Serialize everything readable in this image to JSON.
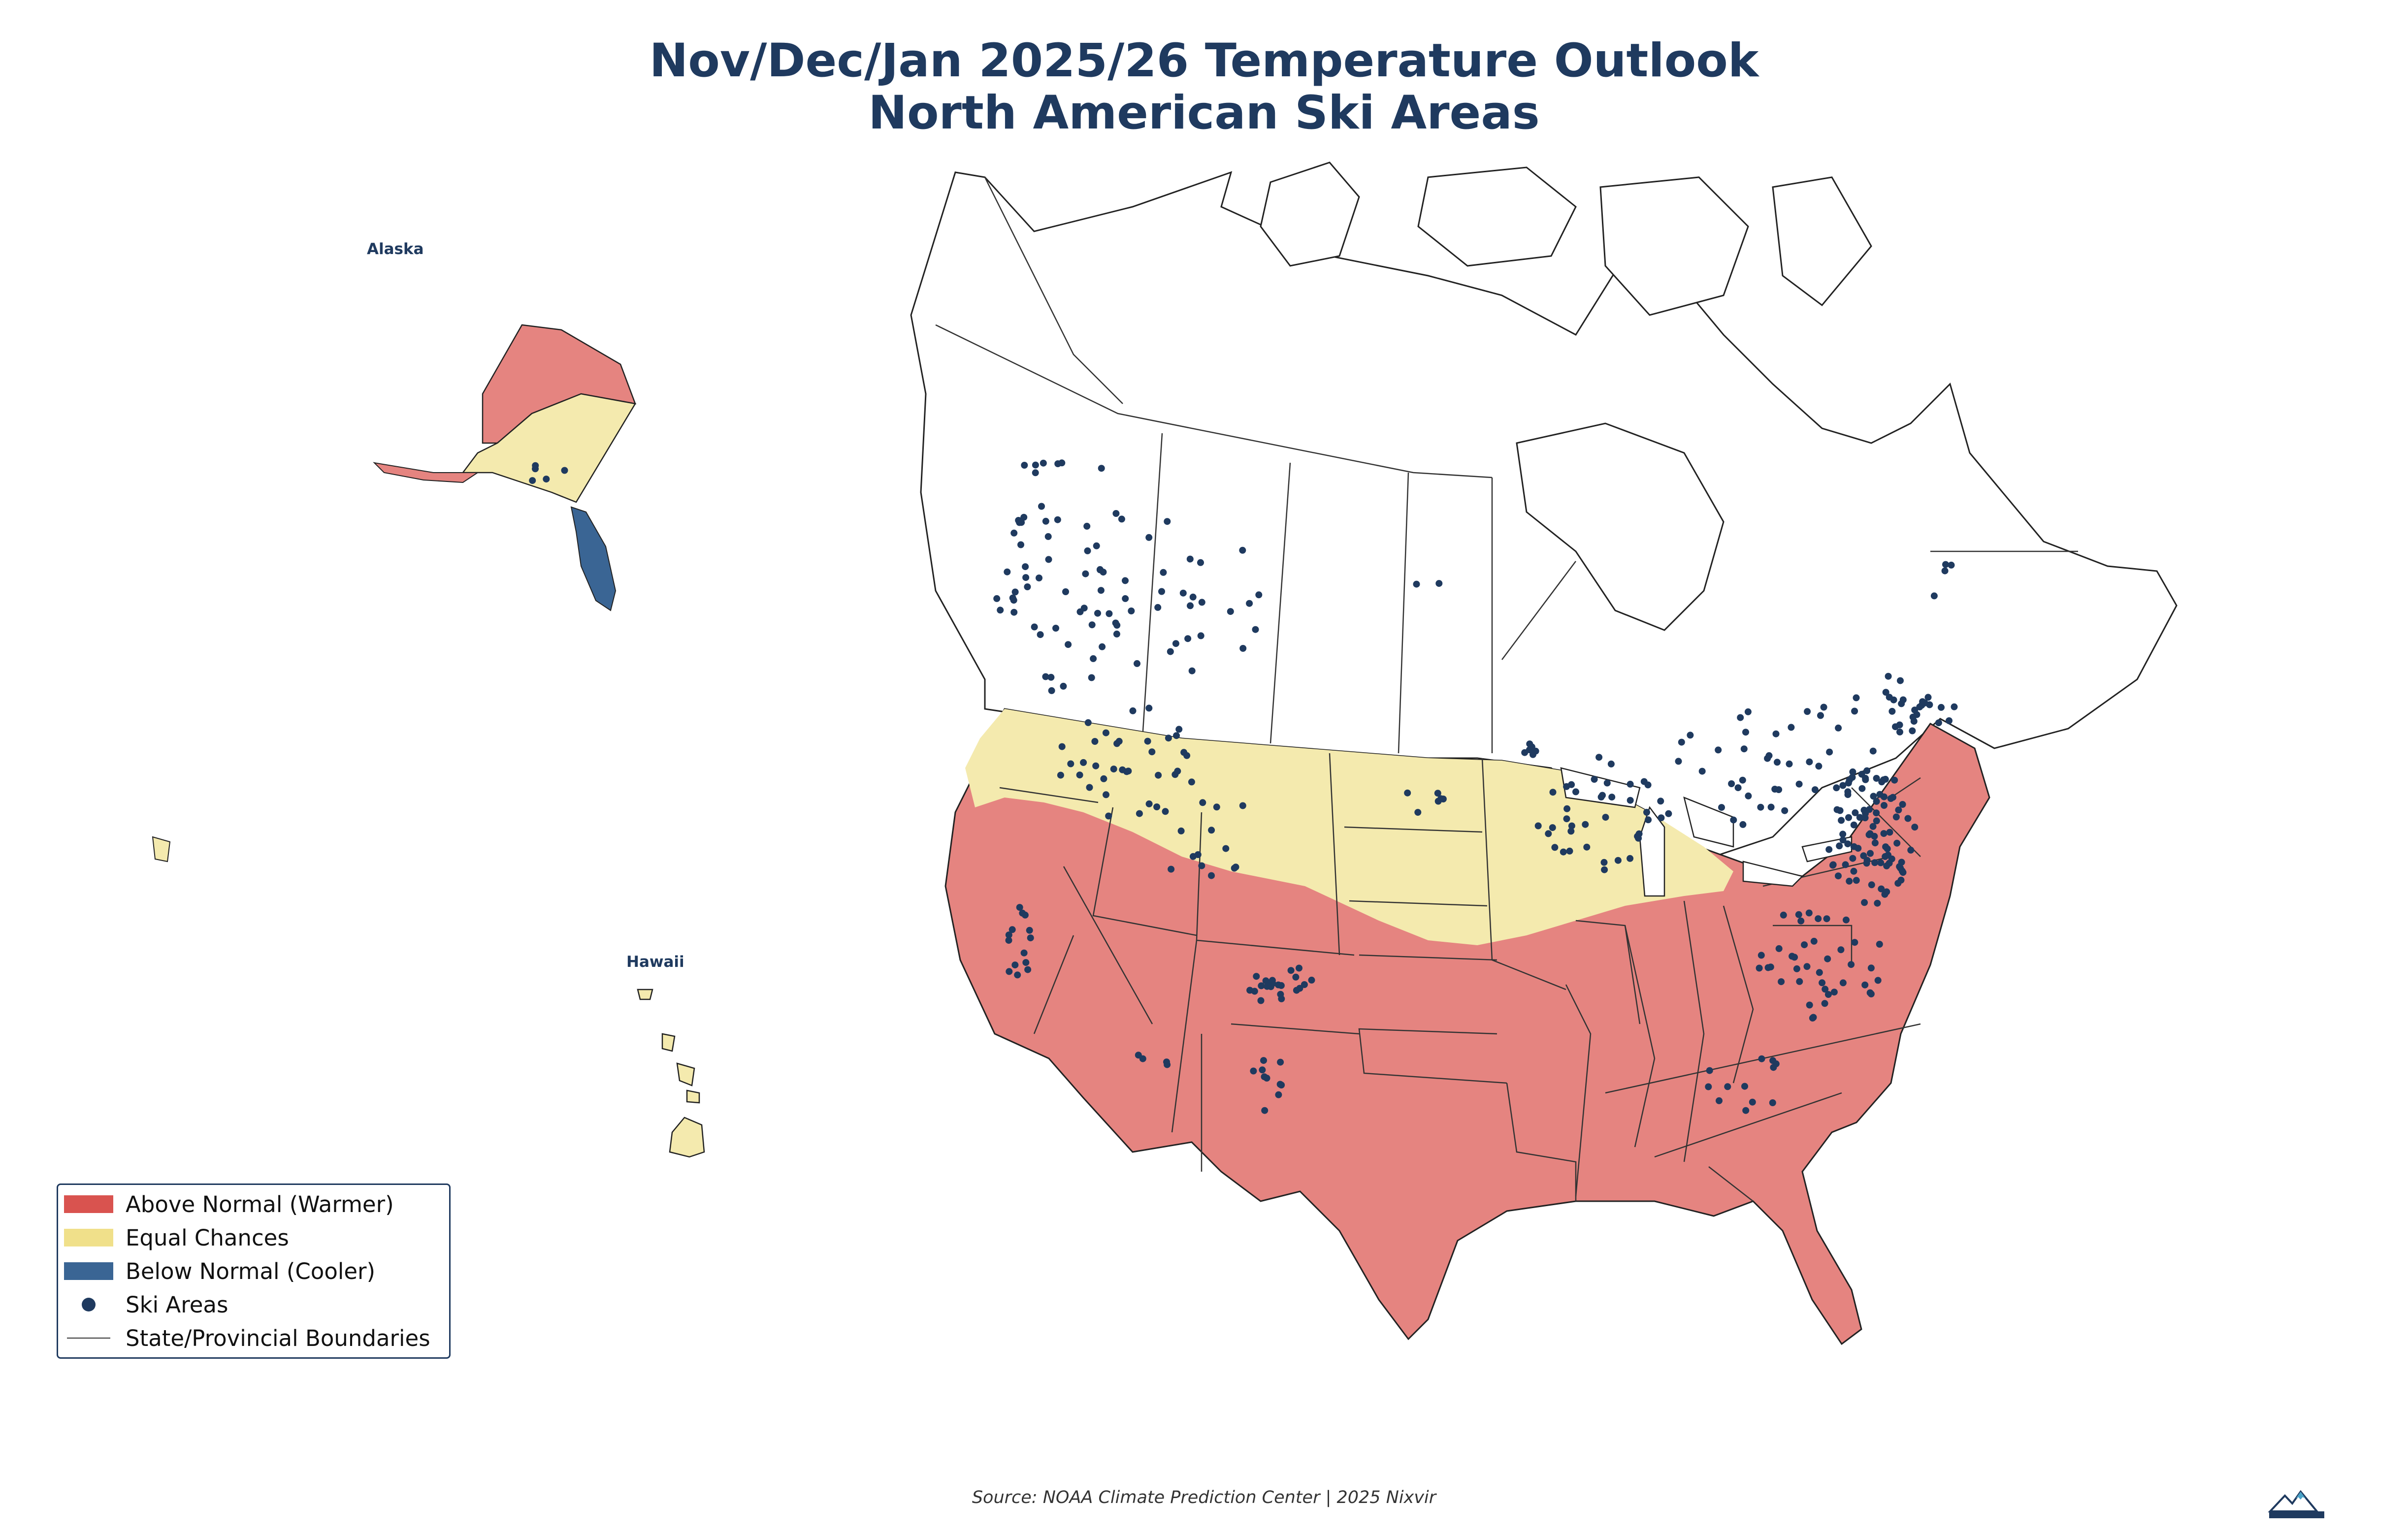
{
  "header": {
    "title_line1": "Nov/Dec/Jan 2025/26 Temperature Outlook",
    "title_line2": "North American Ski Areas"
  },
  "insets": {
    "alaska_label": "Alaska",
    "hawaii_label": "Hawaii"
  },
  "legend": {
    "items": [
      {
        "label": "Above Normal (Warmer)",
        "color": "#d9534f"
      },
      {
        "label": "Equal Chances",
        "color": "#f0e08a"
      },
      {
        "label": "Below Normal (Cooler)",
        "color": "#3a6594"
      },
      {
        "label": "Ski Areas",
        "color": "#1f3a5f"
      },
      {
        "label": "State/Provincial Boundaries",
        "color": "#333333"
      }
    ]
  },
  "footer": {
    "source": "Source: NOAA Climate Prediction Center | 2025 Nixvir",
    "logo_text": "Nixvir"
  },
  "colors": {
    "above": "#e58480",
    "equal": "#f4eaae",
    "below": "#3a6594",
    "ski": "#1f3a5f",
    "title": "#1f3a5f"
  }
}
